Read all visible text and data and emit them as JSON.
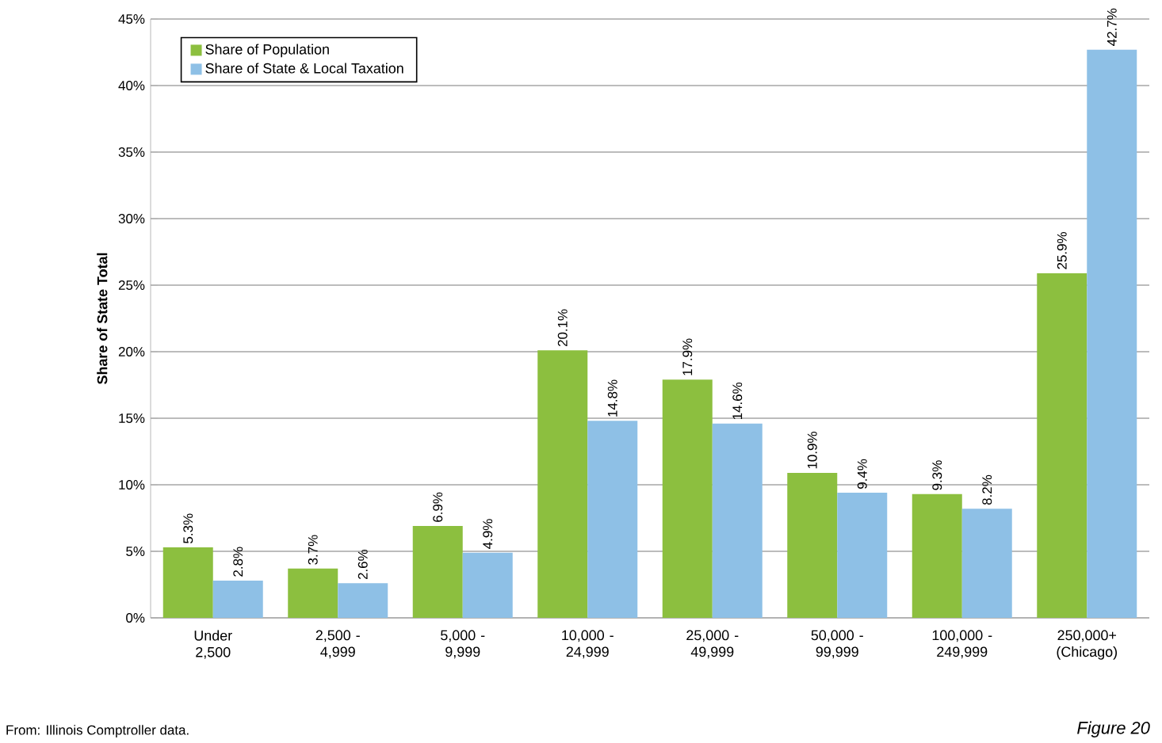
{
  "chart_data": {
    "type": "bar",
    "ylabel": "Share of State Total",
    "categories": [
      "Under 2,500",
      "2,500 - 4,999",
      "5,000 - 9,999",
      "10,000 - 24,999",
      "25,000 - 49,999",
      "50,000 - 99,999",
      "100,000 - 249,999",
      "250,000+ (Chicago)"
    ],
    "series": [
      {
        "name": "Share of Population",
        "color": "#8cbf3f",
        "values": [
          5.3,
          3.7,
          6.9,
          20.1,
          17.9,
          10.9,
          9.3,
          25.9
        ],
        "value_labels": [
          "5.3%",
          "3.7%",
          "6.9%",
          "20.1%",
          "17.9%",
          "10.9%",
          "9.3%",
          "25.9%"
        ]
      },
      {
        "name": "Share of State & Local Taxation",
        "color": "#8ec0e6",
        "values": [
          2.8,
          2.6,
          4.9,
          14.8,
          14.6,
          9.4,
          8.2,
          42.7
        ],
        "value_labels": [
          "2.8%",
          "2.6%",
          "4.9%",
          "14.8%",
          "14.6%",
          "9.4%",
          "8.2%",
          "42.7%"
        ]
      }
    ],
    "ylim": [
      0,
      45
    ],
    "yticks": [
      {
        "value": 0,
        "label": "0%"
      },
      {
        "value": 5,
        "label": "5%"
      },
      {
        "value": 10,
        "label": "10%"
      },
      {
        "value": 15,
        "label": "15%"
      },
      {
        "value": 20,
        "label": "20%"
      },
      {
        "value": 25,
        "label": "25%"
      },
      {
        "value": 30,
        "label": "30%"
      },
      {
        "value": 35,
        "label": "35%"
      },
      {
        "value": 40,
        "label": "40%"
      },
      {
        "value": 45,
        "label": "45%"
      }
    ],
    "grid": "y",
    "legend": "top left",
    "annotations": [
      "From: Illinois Comptroller data.",
      "Figure 20"
    ]
  }
}
